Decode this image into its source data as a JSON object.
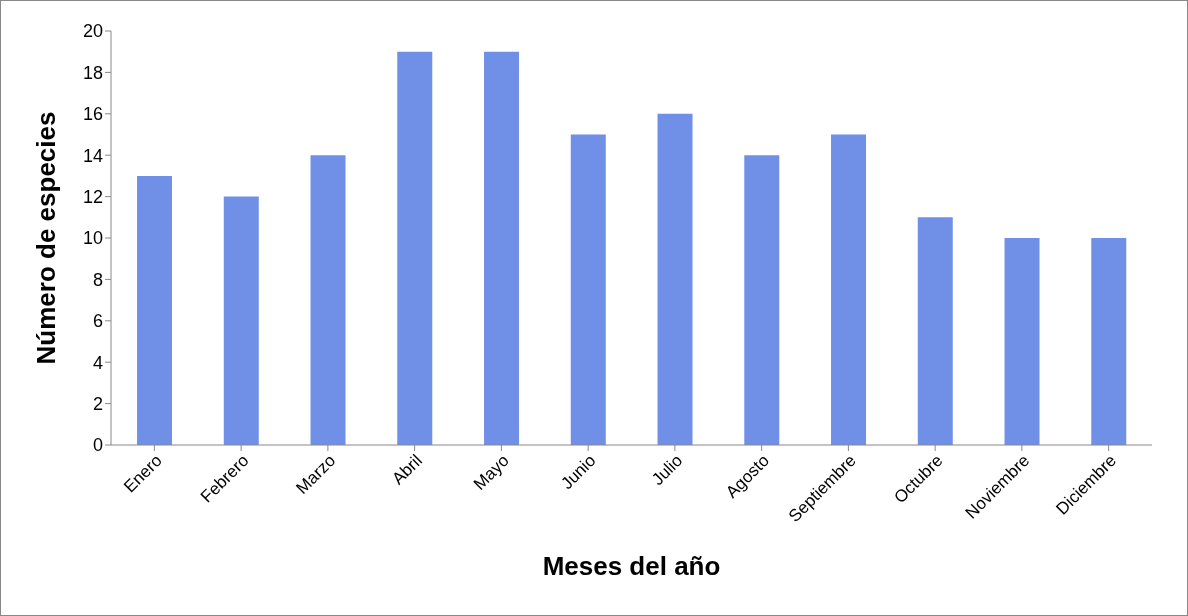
{
  "chart_data": {
    "type": "bar",
    "xlabel": "Meses del año",
    "ylabel": "Número de especies",
    "categories": [
      "Enero",
      "Febrero",
      "Marzo",
      "Abril",
      "Mayo",
      "Junio",
      "Julio",
      "Agosto",
      "Septiembre",
      "Octubre",
      "Noviembre",
      "Diciembre"
    ],
    "values": [
      13,
      12,
      14,
      19,
      19,
      15,
      16,
      14,
      15,
      11,
      10,
      10
    ],
    "color": "#7090e8",
    "ylim": [
      0,
      20
    ],
    "yticks": [
      0,
      2,
      4,
      6,
      8,
      10,
      12,
      14,
      16,
      18,
      20
    ],
    "grid": false,
    "legend": false
  }
}
